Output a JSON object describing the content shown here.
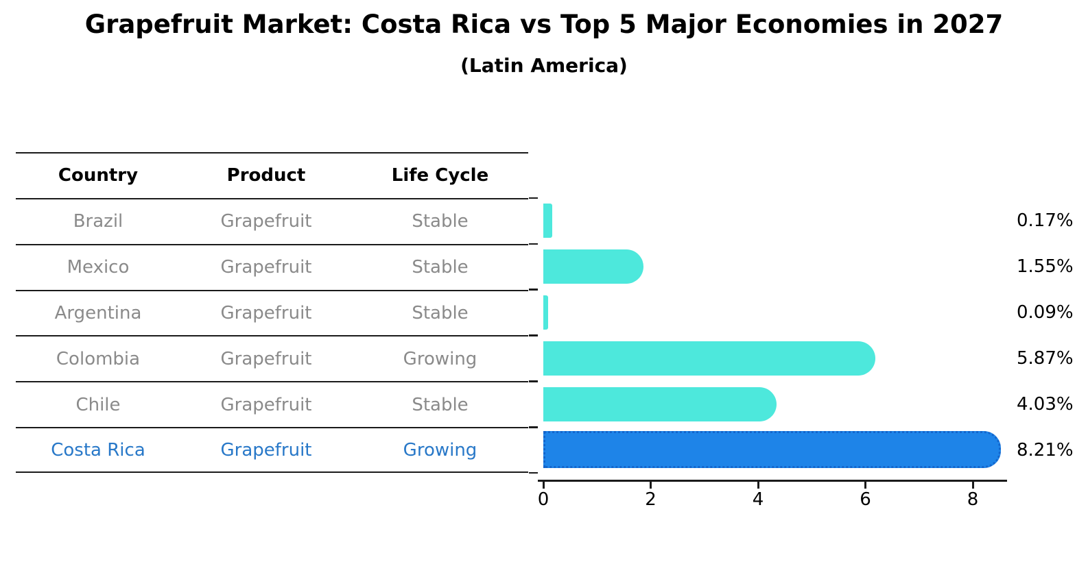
{
  "title": "Grapefruit Market: Costa Rica vs Top 5 Major Economies in 2027",
  "subtitle": "(Latin America)",
  "table": {
    "headers": [
      "Country",
      "Product",
      "Life Cycle"
    ],
    "rows": [
      {
        "country": "Brazil",
        "product": "Grapefruit",
        "life_cycle": "Stable",
        "highlight": false
      },
      {
        "country": "Mexico",
        "product": "Grapefruit",
        "life_cycle": "Stable",
        "highlight": false
      },
      {
        "country": "Argentina",
        "product": "Grapefruit",
        "life_cycle": "Stable",
        "highlight": false
      },
      {
        "country": "Colombia",
        "product": "Grapefruit",
        "life_cycle": "Growing",
        "highlight": false
      },
      {
        "country": "Chile",
        "product": "Grapefruit",
        "life_cycle": "Stable",
        "highlight": false
      },
      {
        "country": "Costa Rica",
        "product": "Grapefruit",
        "life_cycle": "Growing",
        "highlight": true
      }
    ]
  },
  "chart_data": {
    "type": "bar",
    "orientation": "horizontal",
    "title": "Grapefruit Market: Costa Rica vs Top 5 Major Economies in 2027",
    "subtitle": "(Latin America)",
    "categories": [
      "Brazil",
      "Mexico",
      "Argentina",
      "Colombia",
      "Chile",
      "Costa Rica"
    ],
    "values": [
      0.17,
      1.55,
      0.09,
      5.87,
      4.03,
      8.21
    ],
    "value_labels": [
      "0.17%",
      "1.55%",
      "0.09%",
      "5.87%",
      "4.03%",
      "8.21%"
    ],
    "xticks": [
      "0",
      "2",
      "4",
      "6",
      "8"
    ],
    "xlim": [
      0,
      8.6
    ],
    "grid": false,
    "legend": "none",
    "bar_color": "#4DE8DC",
    "highlight_index": 5,
    "highlight_color": "#1E84E8",
    "highlight_border_color": "#1365CC",
    "highlight_text_color": "#2878C8",
    "axis_color": "#1a1a1a"
  }
}
